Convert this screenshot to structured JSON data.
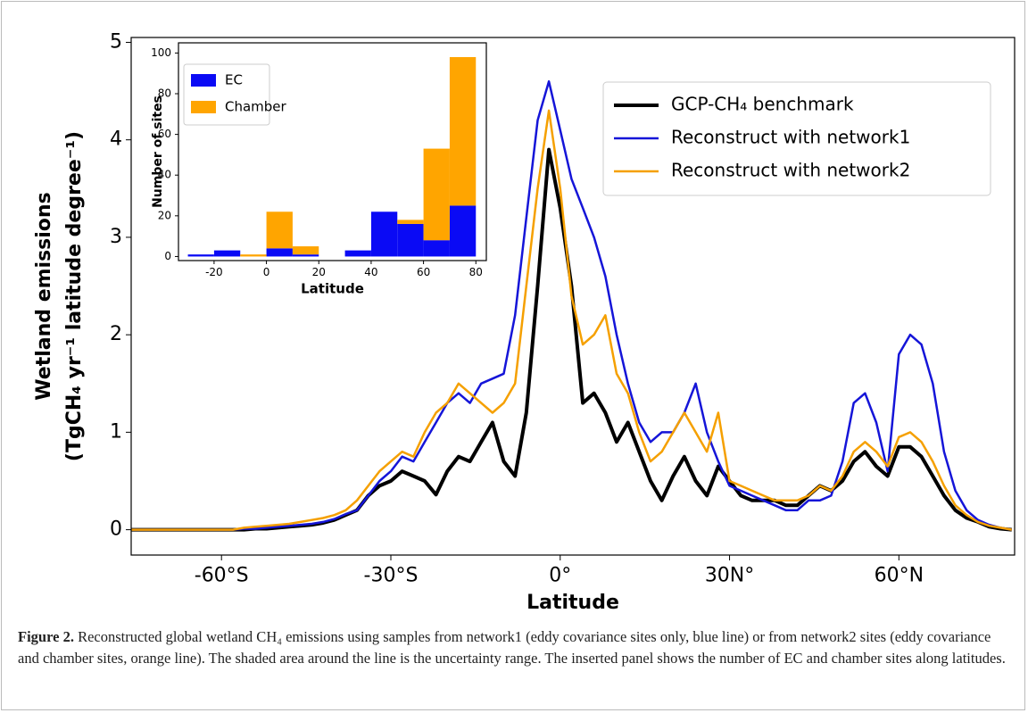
{
  "chart_data": [
    {
      "type": "line",
      "xlabel": "Latitude",
      "ylabel": [
        "Wetland emissions",
        "(TgCH₄ yr⁻¹ latitude degree⁻¹)"
      ],
      "xlim": [
        -76,
        80.5
      ],
      "ylim": [
        -0.26,
        5.05
      ],
      "xticks": [
        {
          "value": -60,
          "label": "-60°S"
        },
        {
          "value": -30,
          "label": "-30°S"
        },
        {
          "value": 0,
          "label": "0°"
        },
        {
          "value": 30,
          "label": "30N°"
        },
        {
          "value": 60,
          "label": "60°N"
        }
      ],
      "yticks": [
        0,
        1,
        2,
        3,
        4,
        5
      ],
      "legend": "upper right",
      "x": [
        -76,
        -74,
        -72,
        -70,
        -68,
        -66,
        -64,
        -62,
        -60,
        -58,
        -56,
        -54,
        -52,
        -50,
        -48,
        -46,
        -44,
        -42,
        -40,
        -38,
        -36,
        -34,
        -32,
        -30,
        -28,
        -26,
        -24,
        -22,
        -20,
        -18,
        -16,
        -14,
        -12,
        -10,
        -8,
        -6,
        -4,
        -2,
        0,
        2,
        4,
        6,
        8,
        10,
        12,
        14,
        16,
        18,
        20,
        22,
        24,
        26,
        28,
        30,
        32,
        34,
        36,
        38,
        40,
        42,
        44,
        46,
        48,
        50,
        52,
        54,
        56,
        58,
        60,
        62,
        64,
        66,
        68,
        70,
        72,
        74,
        76,
        78,
        80
      ],
      "series": [
        {
          "name": "GCP-CH₄ benchmark",
          "color": "#000000",
          "width": 4,
          "values": [
            0,
            0,
            0,
            0,
            0,
            0,
            0,
            0,
            0,
            0,
            0,
            0.01,
            0.01,
            0.02,
            0.03,
            0.04,
            0.05,
            0.07,
            0.1,
            0.15,
            0.2,
            0.35,
            0.45,
            0.5,
            0.6,
            0.55,
            0.5,
            0.36,
            0.6,
            0.75,
            0.7,
            0.9,
            1.1,
            0.7,
            0.55,
            1.2,
            2.5,
            3.9,
            3.3,
            2.5,
            1.3,
            1.4,
            1.2,
            0.9,
            1.1,
            0.8,
            0.5,
            0.3,
            0.55,
            0.75,
            0.5,
            0.35,
            0.65,
            0.5,
            0.35,
            0.3,
            0.3,
            0.3,
            0.25,
            0.25,
            0.35,
            0.45,
            0.4,
            0.5,
            0.7,
            0.8,
            0.65,
            0.55,
            0.85,
            0.85,
            0.75,
            0.55,
            0.35,
            0.2,
            0.12,
            0.08,
            0.03,
            0.01,
            0
          ]
        },
        {
          "name": "Reconstruct with network1",
          "color": "#1515d8",
          "width": 2.5,
          "values": [
            0,
            0,
            0,
            0,
            0,
            0,
            0,
            0,
            0,
            0,
            0.01,
            0.01,
            0.02,
            0.03,
            0.04,
            0.05,
            0.06,
            0.08,
            0.11,
            0.16,
            0.2,
            0.35,
            0.5,
            0.6,
            0.75,
            0.7,
            0.9,
            1.1,
            1.3,
            1.4,
            1.3,
            1.5,
            1.55,
            1.6,
            2.2,
            3.2,
            4.2,
            4.6,
            4.1,
            3.6,
            3.3,
            3.0,
            2.6,
            2.0,
            1.5,
            1.1,
            0.9,
            1.0,
            1.0,
            1.2,
            1.5,
            1.0,
            0.7,
            0.45,
            0.4,
            0.35,
            0.3,
            0.25,
            0.2,
            0.2,
            0.3,
            0.3,
            0.35,
            0.7,
            1.3,
            1.4,
            1.1,
            0.6,
            1.8,
            2.0,
            1.9,
            1.5,
            0.8,
            0.4,
            0.2,
            0.1,
            0.05,
            0.02,
            0
          ]
        },
        {
          "name": "Reconstruct with network2",
          "color": "#f5a000",
          "width": 2.5,
          "values": [
            0,
            0,
            0,
            0,
            0,
            0,
            0,
            0,
            0,
            0,
            0.02,
            0.03,
            0.04,
            0.05,
            0.06,
            0.08,
            0.1,
            0.12,
            0.15,
            0.2,
            0.3,
            0.45,
            0.6,
            0.7,
            0.8,
            0.75,
            1.0,
            1.2,
            1.3,
            1.5,
            1.4,
            1.3,
            1.2,
            1.3,
            1.5,
            2.5,
            3.5,
            4.3,
            3.5,
            2.4,
            1.9,
            2.0,
            2.2,
            1.6,
            1.4,
            1.0,
            0.7,
            0.8,
            1.0,
            1.2,
            1.0,
            0.8,
            1.2,
            0.5,
            0.45,
            0.4,
            0.35,
            0.3,
            0.3,
            0.3,
            0.35,
            0.45,
            0.4,
            0.55,
            0.8,
            0.9,
            0.8,
            0.65,
            0.95,
            1.0,
            0.9,
            0.7,
            0.45,
            0.25,
            0.15,
            0.08,
            0.04,
            0.02,
            0
          ]
        }
      ]
    },
    {
      "type": "histogram",
      "xlabel": "Latitude",
      "ylabel": "Number of sites",
      "xlim": [
        -33.6,
        84
      ],
      "ylim": [
        -2,
        105
      ],
      "xticks": [
        -20,
        0,
        20,
        40,
        60,
        80
      ],
      "yticks": [
        0,
        20,
        40,
        60,
        80,
        100
      ],
      "legend": "upper left",
      "bins": [
        -30,
        -20,
        -10,
        0,
        10,
        20,
        30,
        40,
        50,
        60,
        70,
        80
      ],
      "series": [
        {
          "name": "EC",
          "color": "#0a0af5",
          "values": [
            1,
            3,
            0,
            4,
            1,
            0,
            3,
            22,
            16,
            8,
            25
          ]
        },
        {
          "name": "Chamber",
          "color": "#ffa500",
          "values": [
            0,
            0,
            1,
            18,
            4,
            0,
            0,
            0,
            2,
            45,
            73
          ]
        }
      ]
    }
  ],
  "caption": {
    "label": "Figure 2.",
    "text": "Reconstructed global wetland CH₄ emissions using samples from network1 (eddy covariance sites only, blue line) or from network2 sites (eddy covariance and chamber sites, orange line). The shaded area around the line is the uncertainty range. The inserted panel shows the number of EC and chamber sites along latitudes."
  }
}
